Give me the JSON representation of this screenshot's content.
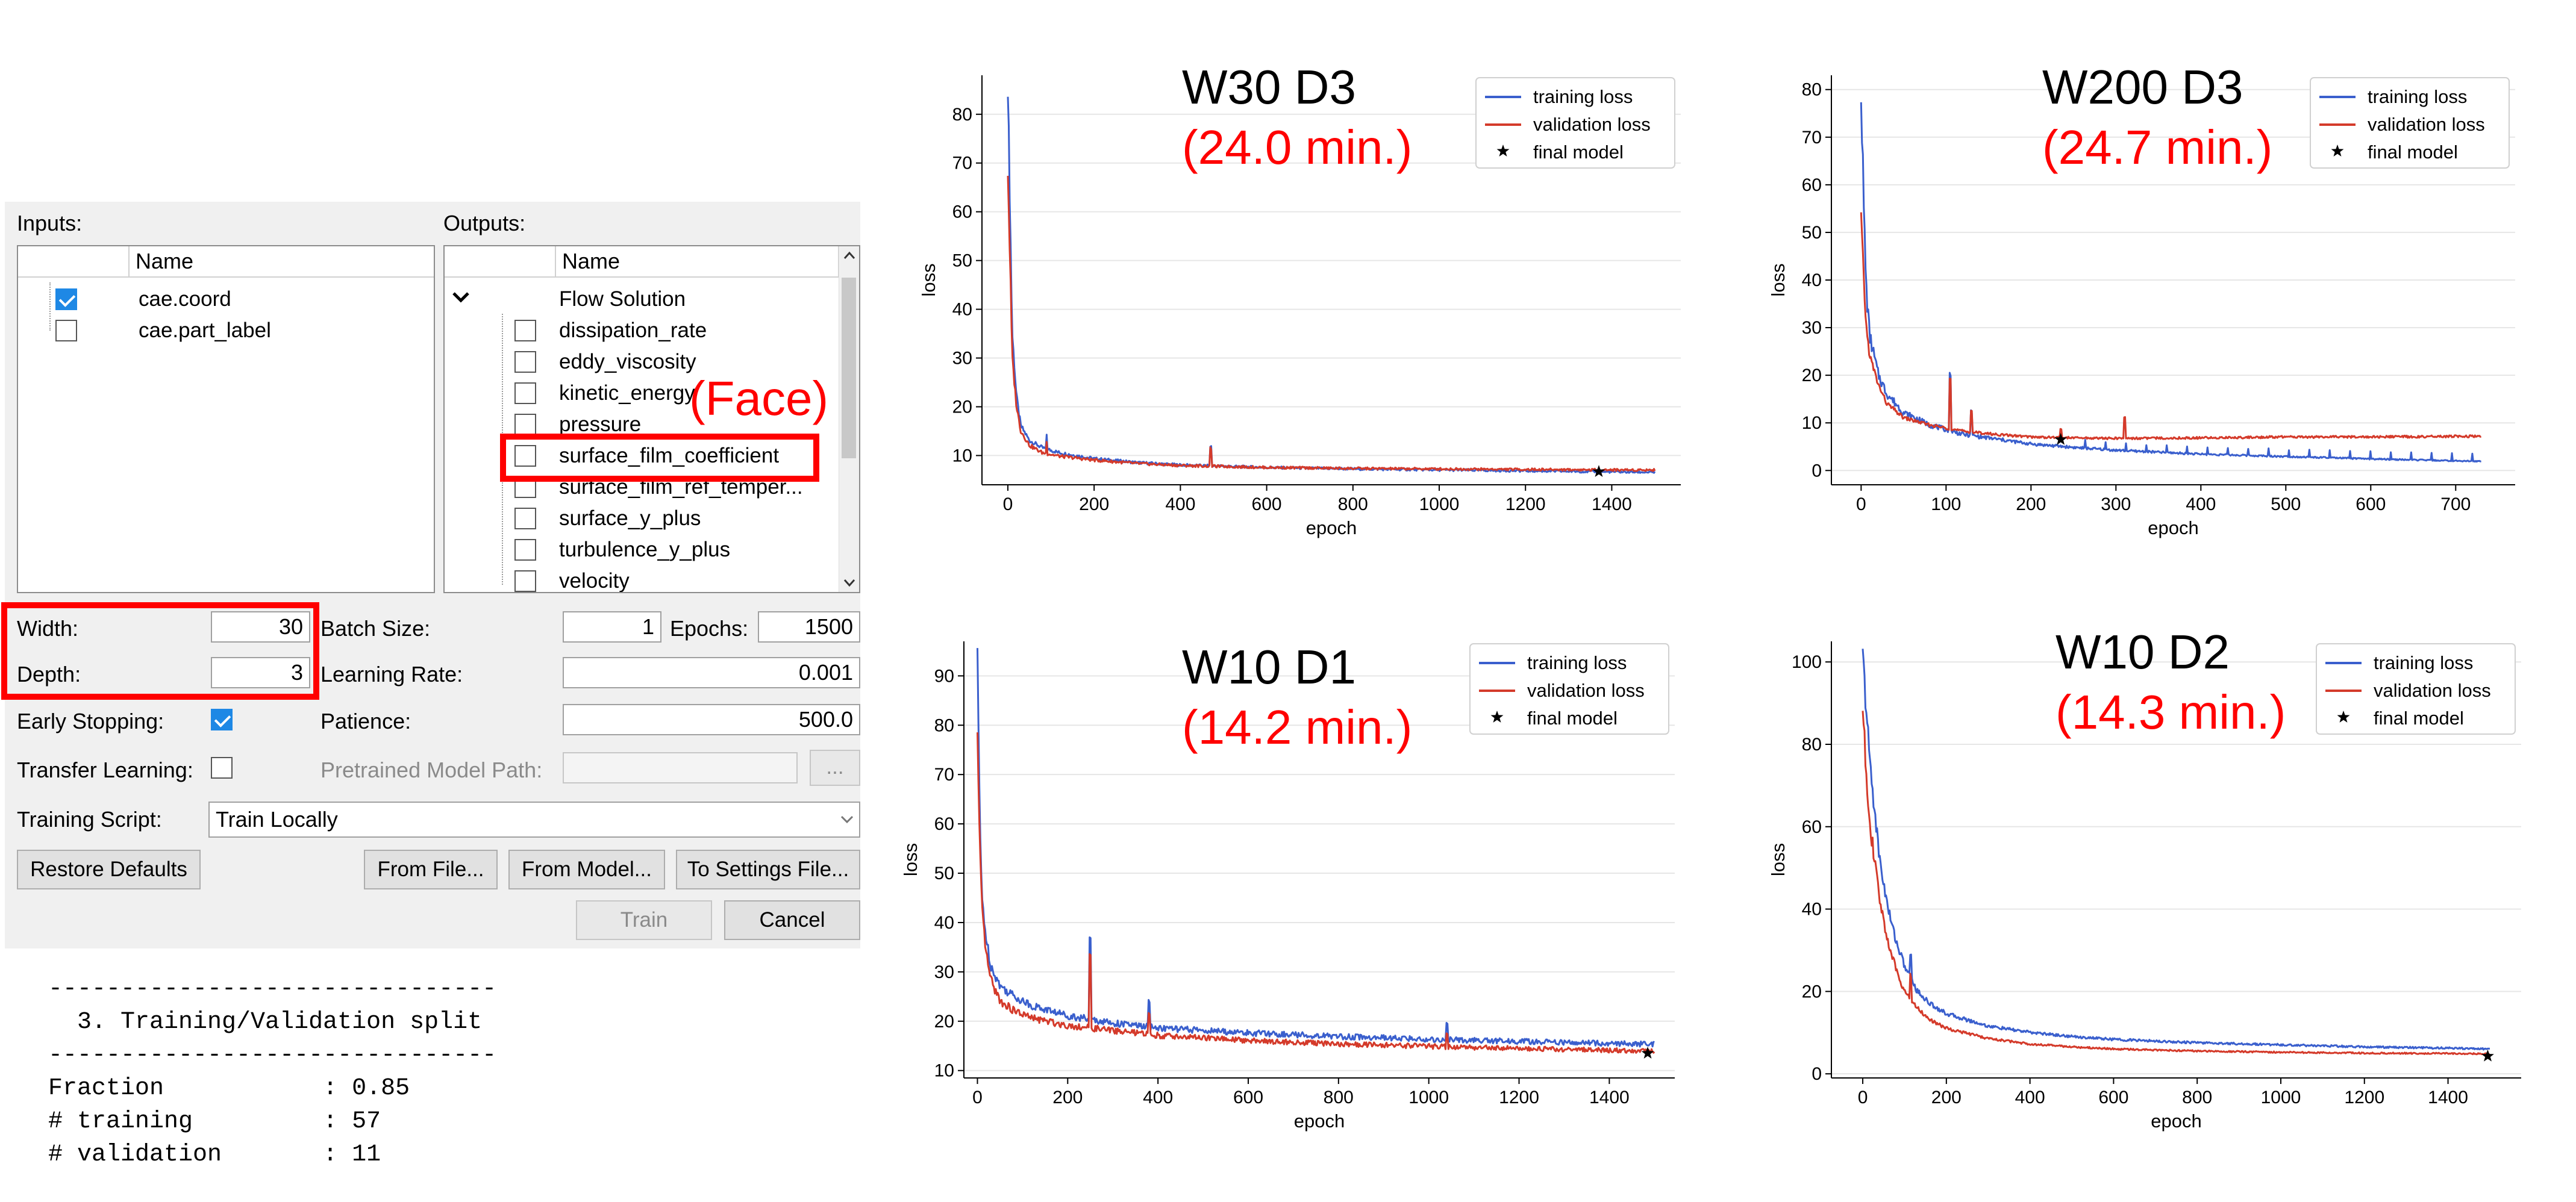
{
  "dialog": {
    "inputs_label": "Inputs:",
    "outputs_label": "Outputs:",
    "name_header": "Name",
    "inputs": [
      {
        "label": "cae.coord",
        "checked": true
      },
      {
        "label": "cae.part_label",
        "checked": false
      }
    ],
    "outputs_group": "Flow Solution",
    "outputs": [
      {
        "label": "dissipation_rate",
        "checked": false
      },
      {
        "label": "eddy_viscosity",
        "checked": false
      },
      {
        "label": "kinetic_energy",
        "checked": false
      },
      {
        "label": "pressure",
        "checked": false
      },
      {
        "label": "surface_film_coefficient",
        "checked": false
      },
      {
        "label": "surface_film_ref_temper...",
        "checked": false
      },
      {
        "label": "surface_y_plus",
        "checked": false
      },
      {
        "label": "turbulence_y_plus",
        "checked": false
      },
      {
        "label": "velocity",
        "checked": false
      }
    ],
    "face_annotation": "(Face)",
    "width_label": "Width:",
    "width_value": "30",
    "depth_label": "Depth:",
    "depth_value": "3",
    "batch_size_label": "Batch Size:",
    "batch_size_value": "1",
    "epochs_label": "Epochs:",
    "epochs_value": "1500",
    "learning_rate_label": "Learning Rate:",
    "learning_rate_value": "0.001",
    "early_stopping_label": "Early Stopping:",
    "early_stopping_checked": true,
    "patience_label": "Patience:",
    "patience_value": "500.0",
    "transfer_learning_label": "Transfer Learning:",
    "transfer_learning_checked": false,
    "pretrained_label": "Pretrained Model Path:",
    "browse_label": "...",
    "training_script_label": "Training Script:",
    "training_script_value": "Train Locally",
    "restore_defaults": "Restore Defaults",
    "from_file": "From File...",
    "from_model": "From Model...",
    "to_settings_file": "To Settings File...",
    "train": "Train",
    "cancel": "Cancel"
  },
  "console": {
    "rule": "-------------------------------",
    "heading": "  3. Training/Validation split",
    "lines": [
      "Fraction           : 0.85",
      "# training         : 57",
      "# validation       : 11"
    ]
  },
  "colors": {
    "training": "#3a5fcd",
    "validation": "#d43a2a",
    "annotation": "#ff0000"
  },
  "legend": {
    "training": "training loss",
    "validation": "validation loss",
    "final": "final model"
  },
  "chart_data": [
    {
      "type": "line",
      "title": "W30 D3",
      "subtitle": "(24.0 min.)",
      "xlabel": "epoch",
      "ylabel": "loss",
      "xlim": [
        -60,
        1560
      ],
      "ylim": [
        4,
        88
      ],
      "xticks": [
        0,
        200,
        400,
        600,
        800,
        1000,
        1200,
        1400
      ],
      "yticks": [
        10,
        20,
        30,
        40,
        50,
        60,
        70,
        80
      ],
      "grid": "horizontal",
      "legend_position": "top-right",
      "series": [
        {
          "name": "training loss",
          "x": [
            0,
            5,
            10,
            20,
            30,
            50,
            80,
            120,
            200,
            300,
            400,
            600,
            800,
            1000,
            1200,
            1400,
            1500
          ],
          "y": [
            86,
            60,
            35,
            22,
            16,
            13,
            11.5,
            10.5,
            9.3,
            8.5,
            8.0,
            7.5,
            7.2,
            7.0,
            6.8,
            6.6,
            6.5
          ]
        },
        {
          "name": "validation loss",
          "x": [
            0,
            5,
            10,
            20,
            30,
            50,
            80,
            120,
            200,
            300,
            400,
            600,
            800,
            1000,
            1200,
            1400,
            1500
          ],
          "y": [
            68,
            50,
            30,
            20,
            15,
            12,
            10.5,
            9.8,
            9.0,
            8.3,
            7.9,
            7.5,
            7.3,
            7.2,
            7.1,
            7.0,
            7.0
          ]
        }
      ],
      "final_model": {
        "x": 1370,
        "y": 6.7
      }
    },
    {
      "type": "line",
      "title": "W200 D3",
      "subtitle": "(24.7 min.)",
      "xlabel": "epoch",
      "ylabel": "loss",
      "xlim": [
        -35,
        770
      ],
      "ylim": [
        -3,
        83
      ],
      "xticks": [
        0,
        100,
        200,
        300,
        400,
        500,
        600,
        700
      ],
      "yticks": [
        0,
        10,
        20,
        30,
        40,
        50,
        60,
        70,
        80
      ],
      "grid": "horizontal",
      "legend_position": "top-right",
      "series": [
        {
          "name": "training loss",
          "x": [
            0,
            3,
            6,
            10,
            20,
            30,
            50,
            80,
            120,
            160,
            200,
            250,
            300,
            400,
            500,
            600,
            700,
            730
          ],
          "y": [
            80,
            55,
            38,
            28,
            20,
            16,
            12,
            9.5,
            7.5,
            6.5,
            5.5,
            4.8,
            4.2,
            3.4,
            2.9,
            2.4,
            2.0,
            1.9
          ]
        },
        {
          "name": "validation loss",
          "x": [
            0,
            3,
            6,
            10,
            20,
            30,
            50,
            80,
            120,
            160,
            200,
            250,
            300,
            400,
            500,
            600,
            700,
            730
          ],
          "y": [
            53,
            40,
            30,
            24,
            18,
            14,
            11,
            9.5,
            8.2,
            7.5,
            7.0,
            6.8,
            6.7,
            6.8,
            7.0,
            7.0,
            7.1,
            7.1
          ]
        }
      ],
      "final_model": {
        "x": 235,
        "y": 6.5
      }
    },
    {
      "type": "line",
      "title": "W10 D1",
      "subtitle": "(14.2 min.)",
      "xlabel": "epoch",
      "ylabel": "loss",
      "xlim": [
        -30,
        1545
      ],
      "ylim": [
        8.5,
        97
      ],
      "xticks": [
        0,
        200,
        400,
        600,
        800,
        1000,
        1200,
        1400
      ],
      "yticks": [
        10,
        20,
        30,
        40,
        50,
        60,
        70,
        80,
        90
      ],
      "grid": "horizontal",
      "legend_position": "top-right",
      "series": [
        {
          "name": "training loss",
          "x": [
            0,
            5,
            10,
            20,
            30,
            50,
            80,
            120,
            200,
            300,
            400,
            600,
            800,
            1000,
            1200,
            1400,
            1500
          ],
          "y": [
            95,
            60,
            45,
            36,
            31,
            27,
            25,
            23,
            21,
            19.5,
            18.5,
            17.5,
            16.8,
            16.2,
            15.8,
            15.4,
            15.2
          ]
        },
        {
          "name": "validation loss",
          "x": [
            0,
            5,
            10,
            20,
            30,
            50,
            80,
            120,
            200,
            300,
            400,
            600,
            800,
            1000,
            1200,
            1400,
            1500
          ],
          "y": [
            77,
            55,
            42,
            33,
            28,
            24,
            22,
            20.5,
            19,
            18,
            17,
            16,
            15.3,
            14.8,
            14.4,
            14.0,
            13.8
          ]
        }
      ],
      "final_model": {
        "x": 1485,
        "y": 13.5
      }
    },
    {
      "type": "line",
      "title": "W10 D2",
      "subtitle": "(14.3 min.)",
      "xlabel": "epoch",
      "ylabel": "loss",
      "xlim": [
        -75,
        1575
      ],
      "ylim": [
        -1,
        105
      ],
      "xticks": [
        0,
        200,
        400,
        600,
        800,
        1000,
        1200,
        1400
      ],
      "yticks": [
        0,
        20,
        40,
        60,
        80,
        100
      ],
      "grid": "horizontal",
      "legend_position": "top-right",
      "series": [
        {
          "name": "training loss",
          "x": [
            0,
            10,
            20,
            40,
            60,
            80,
            100,
            130,
            160,
            200,
            300,
            400,
            500,
            600,
            800,
            1000,
            1200,
            1400,
            1500
          ],
          "y": [
            101,
            85,
            72,
            52,
            40,
            32,
            26,
            20,
            17,
            14.5,
            11.5,
            10,
            9,
            8.3,
            7.5,
            7,
            6.5,
            6.2,
            6
          ]
        },
        {
          "name": "validation loss",
          "x": [
            0,
            10,
            20,
            40,
            60,
            80,
            100,
            130,
            160,
            200,
            300,
            400,
            500,
            600,
            800,
            1000,
            1200,
            1400,
            1500
          ],
          "y": [
            88,
            70,
            58,
            42,
            32,
            25,
            20,
            16,
            13,
            11,
            8.5,
            7.2,
            6.5,
            6,
            5.5,
            5.2,
            5,
            4.9,
            4.8
          ]
        }
      ],
      "final_model": {
        "x": 1495,
        "y": 4.3
      }
    }
  ]
}
